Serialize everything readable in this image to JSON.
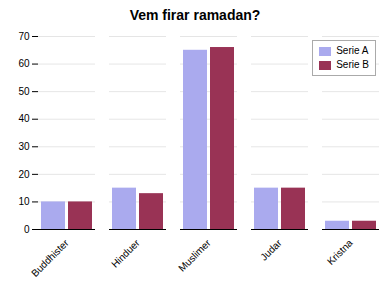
{
  "chart_data": {
    "type": "bar",
    "title": "Vem firar ramadan?",
    "categories": [
      "Buddhister",
      "Hinduer",
      "Muslimer",
      "Judar",
      "Kristna"
    ],
    "series": [
      {
        "name": "Serie A",
        "color": "#aaaaee",
        "values": [
          10,
          15,
          65,
          15,
          3
        ]
      },
      {
        "name": "Serie B",
        "color": "#993355",
        "values": [
          10,
          13,
          66,
          15,
          3
        ]
      }
    ],
    "ylim": [
      0,
      70
    ],
    "yticks": [
      0,
      10,
      20,
      30,
      40,
      50,
      60,
      70
    ],
    "grid": true,
    "legend": "upper right"
  }
}
